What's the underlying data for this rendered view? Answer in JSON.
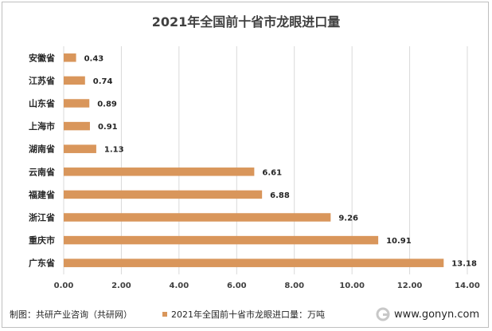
{
  "title": "2021年全国前十省市龙眼进口量",
  "chart_data": {
    "type": "bar",
    "orientation": "horizontal",
    "categories": [
      "安徽省",
      "江苏省",
      "山东省",
      "上海市",
      "湖南省",
      "云南省",
      "福建省",
      "浙江省",
      "重庆市",
      "广东省"
    ],
    "series": [
      {
        "name": "2021年全国前十省市龙眼进口量：万吨",
        "values": [
          0.43,
          0.74,
          0.89,
          0.91,
          1.13,
          6.61,
          6.88,
          9.26,
          10.91,
          13.18
        ]
      }
    ],
    "xlim": [
      0,
      14
    ],
    "xticks": [
      "0.00",
      "2.00",
      "4.00",
      "6.00",
      "8.00",
      "10.00",
      "12.00",
      "14.00"
    ],
    "grid": "vertical",
    "legend": "bottom",
    "bar_color": "#d9965b"
  },
  "footer": {
    "source": "制图：共研产业咨询（共研网）",
    "brand": "www.gonyn.com"
  }
}
